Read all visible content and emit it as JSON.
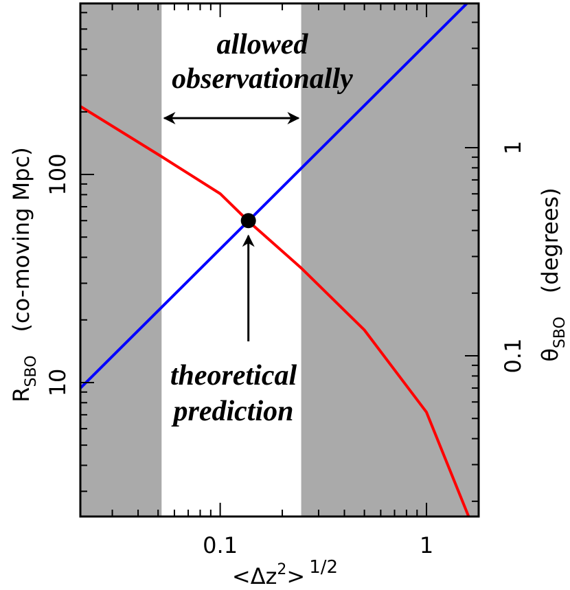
{
  "chart_data": {
    "type": "line",
    "log_x": true,
    "log_y": true,
    "xlim": [
      0.021,
      1.79
    ],
    "ylim": [
      2.27,
      664
    ],
    "y2lim": [
      0.0169,
      4.93
    ],
    "xticks": [
      0.1,
      1
    ],
    "yticks": [
      10,
      100
    ],
    "y2ticks": [
      0.1,
      1
    ],
    "xminor_ticks": [
      0.03,
      0.04,
      0.05,
      0.06,
      0.07,
      0.08,
      0.09,
      0.2,
      0.3,
      0.4,
      0.5,
      0.6,
      0.7,
      0.8,
      0.9
    ],
    "yminor_ticks": [
      3,
      4,
      5,
      6,
      7,
      8,
      9,
      20,
      30,
      40,
      50,
      60,
      70,
      80,
      90,
      200,
      300,
      400,
      500,
      600
    ],
    "y2minor_ticks": [
      0.02,
      0.03,
      0.04,
      0.05,
      0.06,
      0.07,
      0.08,
      0.09,
      0.2,
      0.3,
      0.4,
      0.5,
      0.6,
      0.7,
      0.8,
      0.9,
      2,
      3,
      4
    ],
    "x_label": {
      "text": "<Δz",
      "sup": "2",
      "close": ">",
      "power": "1/2"
    },
    "y_label": {
      "symbol": "R",
      "sub": "SBO",
      "unit": "(co-moving Mpc)"
    },
    "y2_label": {
      "symbol": "θ",
      "sub": "SBO",
      "unit": "(degrees)"
    },
    "allowed_range": [
      0.052,
      0.247
    ],
    "shade_color": "#aaaaaa",
    "series": [
      {
        "color": "#0000ff",
        "x": [
          0.021,
          1.57
        ],
        "values": [
          9.4,
          664
        ]
      },
      {
        "color": "#ff0000",
        "axis": "y2",
        "x": [
          0.021,
          0.052,
          0.1,
          0.137,
          0.247,
          0.5,
          1,
          1.6
        ],
        "values": [
          1.58,
          0.906,
          0.601,
          0.443,
          0.264,
          0.133,
          0.0536,
          0.0169
        ]
      }
    ],
    "point": {
      "x": 0.137,
      "y": 60
    },
    "annotations": [
      [
        "allowed",
        "observationally"
      ],
      [
        "theoretical",
        "prediction"
      ]
    ]
  }
}
